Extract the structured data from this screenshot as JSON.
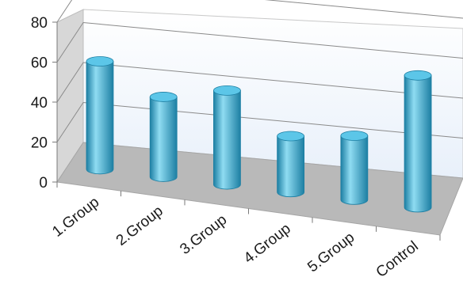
{
  "chart_data": {
    "type": "bar",
    "style": "3d-cylinder",
    "categories": [
      "1.Group",
      "2.Group",
      "3.Group",
      "4.Group",
      "5.Group",
      "Control"
    ],
    "series": [
      {
        "values": [
          54,
          40,
          47,
          28,
          32,
          66
        ]
      }
    ],
    "title": "",
    "xlabel": "",
    "ylabel": "",
    "ylim": [
      0,
      80
    ],
    "yticks": [
      "0",
      "20",
      "40",
      "60",
      "80"
    ],
    "grid": true,
    "legend": "none",
    "colors": {
      "bar_body": "#3aaed6",
      "bar_highlight": "#8fdcf2",
      "bar_shadow": "#1d7fa3",
      "bar_top": "#5cc6e8",
      "back_wall": "#e8f0fa",
      "side_wall": "#d7d7d7",
      "floor": "#b9b9b9",
      "gridline": "#8a8a8a"
    }
  }
}
